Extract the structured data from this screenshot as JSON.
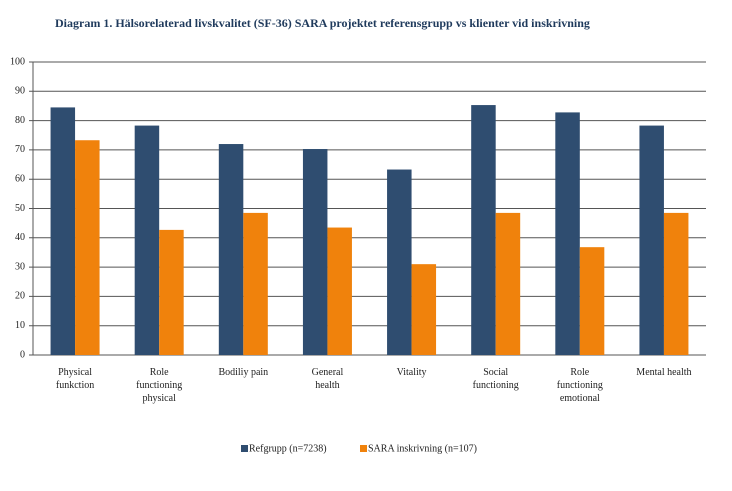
{
  "chart_data": {
    "type": "bar",
    "title": "Diagram 1. Hälsorelaterad livskvalitet (SF-36) SARA projektet referensgrupp vs klienter vid inskrivning",
    "categories": [
      "Physical\nfunkction",
      "Role\nfunctioning\nphysical",
      "Bodiliy pain",
      "General\nhealth",
      "Vitality",
      "Social\nfunctioning",
      "Role\nfunctioning\nemotional",
      "Mental health"
    ],
    "series": [
      {
        "name": "Refgrupp (n=7238)",
        "color": "#2f4d70",
        "values": [
          84.5,
          78.3,
          72,
          70.3,
          63.3,
          85.3,
          82.8,
          78.3
        ]
      },
      {
        "name": "SARA inskrivning (n=107)",
        "color": "#f0820c",
        "values": [
          73.3,
          42.7,
          48.5,
          43.5,
          31,
          48.5,
          36.8,
          48.5
        ]
      }
    ],
    "ylim": [
      0,
      100
    ],
    "yticks": [
      0,
      10,
      20,
      30,
      40,
      50,
      60,
      70,
      80,
      90,
      100
    ],
    "grid": true,
    "legend": "bottom"
  }
}
